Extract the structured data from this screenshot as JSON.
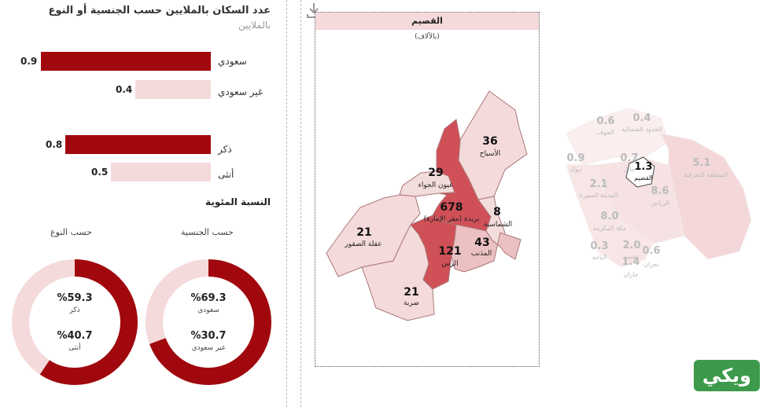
{
  "header": {
    "title": "عدد السكان بالملايين حسب الجنسية أو النوع",
    "subtitle": "بالملايين"
  },
  "bars": {
    "nationality": [
      {
        "label": "سعودي",
        "value": "0.9",
        "fill": 0.9,
        "color": "#a0080d"
      },
      {
        "label": "غير سعودي",
        "value": "0.4",
        "fill": 0.4,
        "color": "#f5dadb"
      }
    ],
    "gender": [
      {
        "label": "ذكر",
        "value": "0.8",
        "fill": 0.8,
        "color": "#a0080d"
      },
      {
        "label": "أنثى",
        "value": "0.5",
        "fill": 0.5,
        "color": "#f5dadb"
      }
    ]
  },
  "percent_section": {
    "title": "النسبة المئوية",
    "by_gender": {
      "title": "حسب النوع",
      "primary_value": "%59.3",
      "primary_label": "ذكر",
      "secondary_value": "%40.7",
      "secondary_label": "أنثى",
      "primary_fraction": 0.593
    },
    "by_nationality": {
      "title": "حسب الجنسية",
      "primary_value": "%69.3",
      "primary_label": "سعودي",
      "secondary_value": "%30.7",
      "secondary_label": "غير سعودي",
      "primary_fraction": 0.693
    }
  },
  "region_map": {
    "title": "القصيم",
    "unit": "(بالآلاف)",
    "districts": [
      {
        "value": "36",
        "name": "الأسياح"
      },
      {
        "value": "29",
        "name": "عيون الجواء"
      },
      {
        "value": "678",
        "name": "بريدة (مقر الإمارة)"
      },
      {
        "value": "8",
        "name": "الشماسية"
      },
      {
        "value": "21",
        "name": "عقلة الصقور"
      },
      {
        "value": "121",
        "name": "الرس"
      },
      {
        "value": "43",
        "name": "المذنب"
      },
      {
        "value": "21",
        "name": "ضرية"
      }
    ]
  },
  "ksa_map": {
    "regions": [
      {
        "value": "0.6",
        "name": "الجوف"
      },
      {
        "value": "0.4",
        "name": "الحدود الشمالية"
      },
      {
        "value": "0.9",
        "name": "تبوك"
      },
      {
        "value": "0.7",
        "name": "حائل"
      },
      {
        "value": "1.3",
        "name": "القصيم"
      },
      {
        "value": "5.1",
        "name": "المنطقة الشرقية"
      },
      {
        "value": "2.1",
        "name": "المدينة المنورة"
      },
      {
        "value": "8.6",
        "name": "الرياض"
      },
      {
        "value": "8.0",
        "name": "مكة المكرمة"
      },
      {
        "value": "0.3",
        "name": "الباحة"
      },
      {
        "value": "2.0",
        "name": "عسير"
      },
      {
        "value": "0.6",
        "name": "نجران"
      },
      {
        "value": "1.4",
        "name": "جازان"
      }
    ]
  },
  "logo": {
    "text": "ويكي"
  },
  "colors": {
    "dark_red": "#a0080d",
    "light_pink": "#f5dadb",
    "mid_red": "#d05058",
    "pale": "#f3dcdc"
  }
}
